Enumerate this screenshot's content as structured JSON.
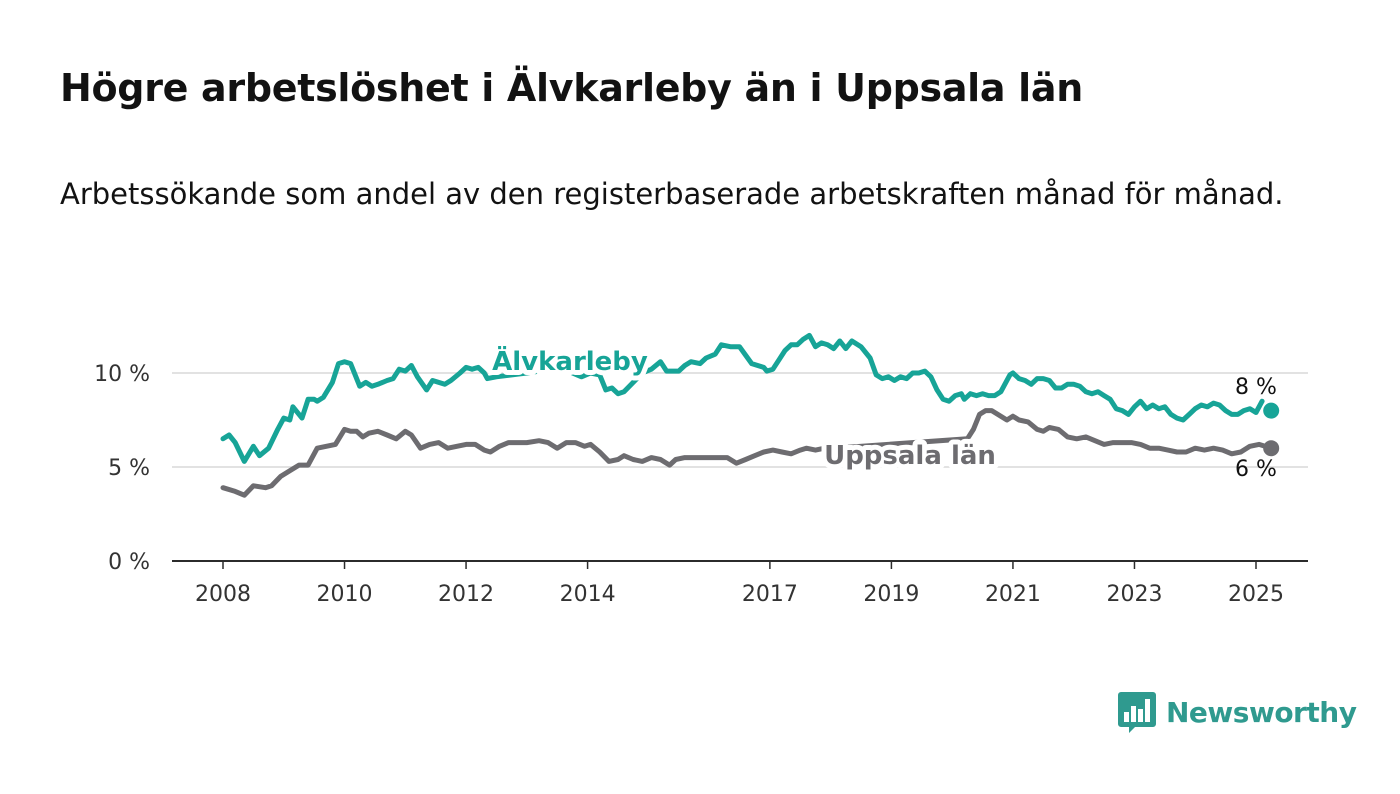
{
  "title": "Högre arbetslöshet i Älvkarleby än i Uppsala län",
  "subtitle": "Arbetssökande som andel av den registerbaserade arbetskraften månad för månad.",
  "brand": {
    "name": "Newsworthy",
    "icon": "newsworthy-logo-icon",
    "color": "#2f9a8f"
  },
  "chart_data": {
    "type": "line",
    "title": "Högre arbetslöshet i Älvkarleby än i Uppsala län",
    "subtitle": "Arbetssökande som andel av den registerbaserade arbetskraften månad för månad.",
    "xlabel": "",
    "ylabel": "",
    "x_ticks": [
      "2008",
      "2010",
      "2012",
      "2014",
      "2017",
      "2019",
      "2021",
      "2023",
      "2025"
    ],
    "x_tick_values": [
      2008,
      2010,
      2012,
      2014,
      2017,
      2019,
      2021,
      2023,
      2025
    ],
    "y_ticks": [
      "0 %",
      "5 %",
      "10 %"
    ],
    "y_tick_values": [
      0,
      5,
      10
    ],
    "ylim": [
      0,
      11
    ],
    "xlim": [
      2007.2,
      2026.1
    ],
    "grid": true,
    "legend": "inline labels",
    "series": [
      {
        "name": "Älvkarleby",
        "color": "#17a497",
        "end_label": "8 %",
        "end_value": 8,
        "end_x": 2025.25,
        "points": [
          [
            2008.0,
            6.5
          ],
          [
            2008.1,
            6.7
          ],
          [
            2008.2,
            6.3
          ],
          [
            2008.35,
            5.3
          ],
          [
            2008.5,
            6.1
          ],
          [
            2008.6,
            5.6
          ],
          [
            2008.75,
            6.0
          ],
          [
            2008.9,
            7.0
          ],
          [
            2009.0,
            7.6
          ],
          [
            2009.1,
            7.5
          ],
          [
            2009.15,
            8.2
          ],
          [
            2009.3,
            7.6
          ],
          [
            2009.4,
            8.6
          ],
          [
            2009.5,
            8.6
          ],
          [
            2009.55,
            8.5
          ],
          [
            2009.65,
            8.7
          ],
          [
            2009.8,
            9.5
          ],
          [
            2009.9,
            10.5
          ],
          [
            2010.0,
            10.6
          ],
          [
            2010.1,
            10.5
          ],
          [
            2010.25,
            9.3
          ],
          [
            2010.35,
            9.5
          ],
          [
            2010.45,
            9.3
          ],
          [
            2010.55,
            9.4
          ],
          [
            2010.7,
            9.6
          ],
          [
            2010.8,
            9.7
          ],
          [
            2010.9,
            10.2
          ],
          [
            2011.0,
            10.1
          ],
          [
            2011.1,
            10.4
          ],
          [
            2011.2,
            9.8
          ],
          [
            2011.35,
            9.1
          ],
          [
            2011.45,
            9.6
          ],
          [
            2011.55,
            9.5
          ],
          [
            2011.65,
            9.4
          ],
          [
            2011.75,
            9.6
          ],
          [
            2011.9,
            10.0
          ],
          [
            2012.0,
            10.3
          ],
          [
            2012.1,
            10.2
          ],
          [
            2012.2,
            10.3
          ],
          [
            2012.3,
            10.0
          ],
          [
            2012.35,
            9.7
          ],
          [
            2012.5,
            9.8
          ],
          [
            2013.0,
            10.0
          ],
          [
            2013.2,
            10.1
          ],
          [
            2013.4,
            10.3
          ],
          [
            2013.6,
            10.2
          ],
          [
            2013.75,
            10.0
          ],
          [
            2013.9,
            9.8
          ],
          [
            2014.05,
            10.0
          ],
          [
            2014.2,
            9.9
          ],
          [
            2014.3,
            9.1
          ],
          [
            2014.4,
            9.2
          ],
          [
            2014.5,
            8.9
          ],
          [
            2014.6,
            9.0
          ],
          [
            2014.75,
            9.5
          ],
          [
            2014.9,
            10.0
          ],
          [
            2015.05,
            10.2
          ],
          [
            2015.2,
            10.6
          ],
          [
            2015.3,
            10.1
          ],
          [
            2015.5,
            10.1
          ],
          [
            2015.6,
            10.4
          ],
          [
            2015.7,
            10.6
          ],
          [
            2015.85,
            10.5
          ],
          [
            2015.95,
            10.8
          ],
          [
            2016.1,
            11.0
          ],
          [
            2016.2,
            11.5
          ],
          [
            2016.35,
            11.4
          ],
          [
            2016.5,
            11.4
          ],
          [
            2016.7,
            10.5
          ],
          [
            2016.8,
            10.4
          ],
          [
            2016.9,
            10.3
          ],
          [
            2016.95,
            10.1
          ],
          [
            2017.05,
            10.2
          ],
          [
            2017.15,
            10.7
          ],
          [
            2017.25,
            11.2
          ],
          [
            2017.35,
            11.5
          ],
          [
            2017.45,
            11.5
          ],
          [
            2017.55,
            11.8
          ],
          [
            2017.65,
            12.0
          ],
          [
            2017.75,
            11.4
          ],
          [
            2017.85,
            11.6
          ],
          [
            2017.95,
            11.5
          ],
          [
            2018.05,
            11.3
          ],
          [
            2018.15,
            11.7
          ],
          [
            2018.25,
            11.3
          ],
          [
            2018.35,
            11.7
          ],
          [
            2018.5,
            11.4
          ],
          [
            2018.65,
            10.8
          ],
          [
            2018.75,
            9.9
          ],
          [
            2018.85,
            9.7
          ],
          [
            2018.95,
            9.8
          ],
          [
            2019.05,
            9.6
          ],
          [
            2019.15,
            9.8
          ],
          [
            2019.25,
            9.7
          ],
          [
            2019.35,
            10.0
          ],
          [
            2019.45,
            10.0
          ],
          [
            2019.55,
            10.1
          ],
          [
            2019.65,
            9.8
          ],
          [
            2019.75,
            9.1
          ],
          [
            2019.85,
            8.6
          ],
          [
            2019.95,
            8.5
          ],
          [
            2020.05,
            8.8
          ],
          [
            2020.15,
            8.9
          ],
          [
            2020.2,
            8.6
          ],
          [
            2020.3,
            8.9
          ],
          [
            2020.4,
            8.8
          ],
          [
            2020.5,
            8.9
          ],
          [
            2020.6,
            8.8
          ],
          [
            2020.7,
            8.8
          ],
          [
            2020.8,
            9.0
          ],
          [
            2020.95,
            9.9
          ],
          [
            2021.0,
            10.0
          ],
          [
            2021.1,
            9.7
          ],
          [
            2021.2,
            9.6
          ],
          [
            2021.3,
            9.4
          ],
          [
            2021.4,
            9.7
          ],
          [
            2021.5,
            9.7
          ],
          [
            2021.6,
            9.6
          ],
          [
            2021.7,
            9.2
          ],
          [
            2021.8,
            9.2
          ],
          [
            2021.9,
            9.4
          ],
          [
            2022.0,
            9.4
          ],
          [
            2022.1,
            9.3
          ],
          [
            2022.2,
            9.0
          ],
          [
            2022.3,
            8.9
          ],
          [
            2022.4,
            9.0
          ],
          [
            2022.5,
            8.8
          ],
          [
            2022.6,
            8.6
          ],
          [
            2022.7,
            8.1
          ],
          [
            2022.8,
            8.0
          ],
          [
            2022.9,
            7.8
          ],
          [
            2023.0,
            8.2
          ],
          [
            2023.1,
            8.5
          ],
          [
            2023.2,
            8.1
          ],
          [
            2023.3,
            8.3
          ],
          [
            2023.4,
            8.1
          ],
          [
            2023.5,
            8.2
          ],
          [
            2023.6,
            7.8
          ],
          [
            2023.7,
            7.6
          ],
          [
            2023.8,
            7.5
          ],
          [
            2023.9,
            7.8
          ],
          [
            2024.0,
            8.1
          ],
          [
            2024.1,
            8.3
          ],
          [
            2024.2,
            8.2
          ],
          [
            2024.3,
            8.4
          ],
          [
            2024.4,
            8.3
          ],
          [
            2024.5,
            8.0
          ],
          [
            2024.6,
            7.8
          ],
          [
            2024.7,
            7.8
          ],
          [
            2024.8,
            8.0
          ],
          [
            2024.9,
            8.1
          ],
          [
            2025.0,
            7.9
          ],
          [
            2025.1,
            8.5
          ]
        ]
      },
      {
        "name": "Uppsala län",
        "color": "#6d6c70",
        "end_label": "6 %",
        "end_value": 6,
        "end_x": 2025.25,
        "points": [
          [
            2008.0,
            3.9
          ],
          [
            2008.2,
            3.7
          ],
          [
            2008.35,
            3.5
          ],
          [
            2008.5,
            4.0
          ],
          [
            2008.7,
            3.9
          ],
          [
            2008.8,
            4.0
          ],
          [
            2008.95,
            4.5
          ],
          [
            2009.1,
            4.8
          ],
          [
            2009.25,
            5.1
          ],
          [
            2009.4,
            5.1
          ],
          [
            2009.55,
            6.0
          ],
          [
            2009.7,
            6.1
          ],
          [
            2009.85,
            6.2
          ],
          [
            2010.0,
            7.0
          ],
          [
            2010.1,
            6.9
          ],
          [
            2010.2,
            6.9
          ],
          [
            2010.3,
            6.6
          ],
          [
            2010.4,
            6.8
          ],
          [
            2010.55,
            6.9
          ],
          [
            2010.7,
            6.7
          ],
          [
            2010.85,
            6.5
          ],
          [
            2011.0,
            6.9
          ],
          [
            2011.1,
            6.7
          ],
          [
            2011.25,
            6.0
          ],
          [
            2011.4,
            6.2
          ],
          [
            2011.55,
            6.3
          ],
          [
            2011.7,
            6.0
          ],
          [
            2011.85,
            6.1
          ],
          [
            2012.0,
            6.2
          ],
          [
            2012.15,
            6.2
          ],
          [
            2012.3,
            5.9
          ],
          [
            2012.4,
            5.8
          ],
          [
            2012.55,
            6.1
          ],
          [
            2012.7,
            6.3
          ],
          [
            2012.85,
            6.3
          ],
          [
            2013.0,
            6.3
          ],
          [
            2013.2,
            6.4
          ],
          [
            2013.35,
            6.3
          ],
          [
            2013.5,
            6.0
          ],
          [
            2013.65,
            6.3
          ],
          [
            2013.8,
            6.3
          ],
          [
            2013.95,
            6.1
          ],
          [
            2014.05,
            6.2
          ],
          [
            2014.2,
            5.8
          ],
          [
            2014.35,
            5.3
          ],
          [
            2014.5,
            5.4
          ],
          [
            2014.6,
            5.6
          ],
          [
            2014.75,
            5.4
          ],
          [
            2014.9,
            5.3
          ],
          [
            2015.05,
            5.5
          ],
          [
            2015.2,
            5.4
          ],
          [
            2015.35,
            5.1
          ],
          [
            2015.45,
            5.4
          ],
          [
            2015.6,
            5.5
          ],
          [
            2015.75,
            5.5
          ],
          [
            2015.95,
            5.5
          ],
          [
            2016.15,
            5.5
          ],
          [
            2016.3,
            5.5
          ],
          [
            2016.45,
            5.2
          ],
          [
            2016.6,
            5.4
          ],
          [
            2016.75,
            5.6
          ],
          [
            2016.9,
            5.8
          ],
          [
            2017.05,
            5.9
          ],
          [
            2017.2,
            5.8
          ],
          [
            2017.35,
            5.7
          ],
          [
            2017.5,
            5.9
          ],
          [
            2017.6,
            6.0
          ],
          [
            2017.75,
            5.9
          ],
          [
            2017.9,
            6.0
          ],
          [
            2018.05,
            6.0
          ],
          [
            2020.25,
            6.5
          ],
          [
            2020.35,
            7.0
          ],
          [
            2020.45,
            7.8
          ],
          [
            2020.55,
            8.0
          ],
          [
            2020.65,
            8.0
          ],
          [
            2020.75,
            7.8
          ],
          [
            2020.9,
            7.5
          ],
          [
            2021.0,
            7.7
          ],
          [
            2021.1,
            7.5
          ],
          [
            2021.25,
            7.4
          ],
          [
            2021.4,
            7.0
          ],
          [
            2021.5,
            6.9
          ],
          [
            2021.6,
            7.1
          ],
          [
            2021.75,
            7.0
          ],
          [
            2021.9,
            6.6
          ],
          [
            2022.05,
            6.5
          ],
          [
            2022.2,
            6.6
          ],
          [
            2022.35,
            6.4
          ],
          [
            2022.5,
            6.2
          ],
          [
            2022.65,
            6.3
          ],
          [
            2022.8,
            6.3
          ],
          [
            2022.95,
            6.3
          ],
          [
            2023.1,
            6.2
          ],
          [
            2023.25,
            6.0
          ],
          [
            2023.4,
            6.0
          ],
          [
            2023.55,
            5.9
          ],
          [
            2023.7,
            5.8
          ],
          [
            2023.85,
            5.8
          ],
          [
            2024.0,
            6.0
          ],
          [
            2024.15,
            5.9
          ],
          [
            2024.3,
            6.0
          ],
          [
            2024.45,
            5.9
          ],
          [
            2024.6,
            5.7
          ],
          [
            2024.75,
            5.8
          ],
          [
            2024.9,
            6.1
          ],
          [
            2025.05,
            6.2
          ],
          [
            2025.15,
            6.1
          ]
        ]
      }
    ]
  }
}
